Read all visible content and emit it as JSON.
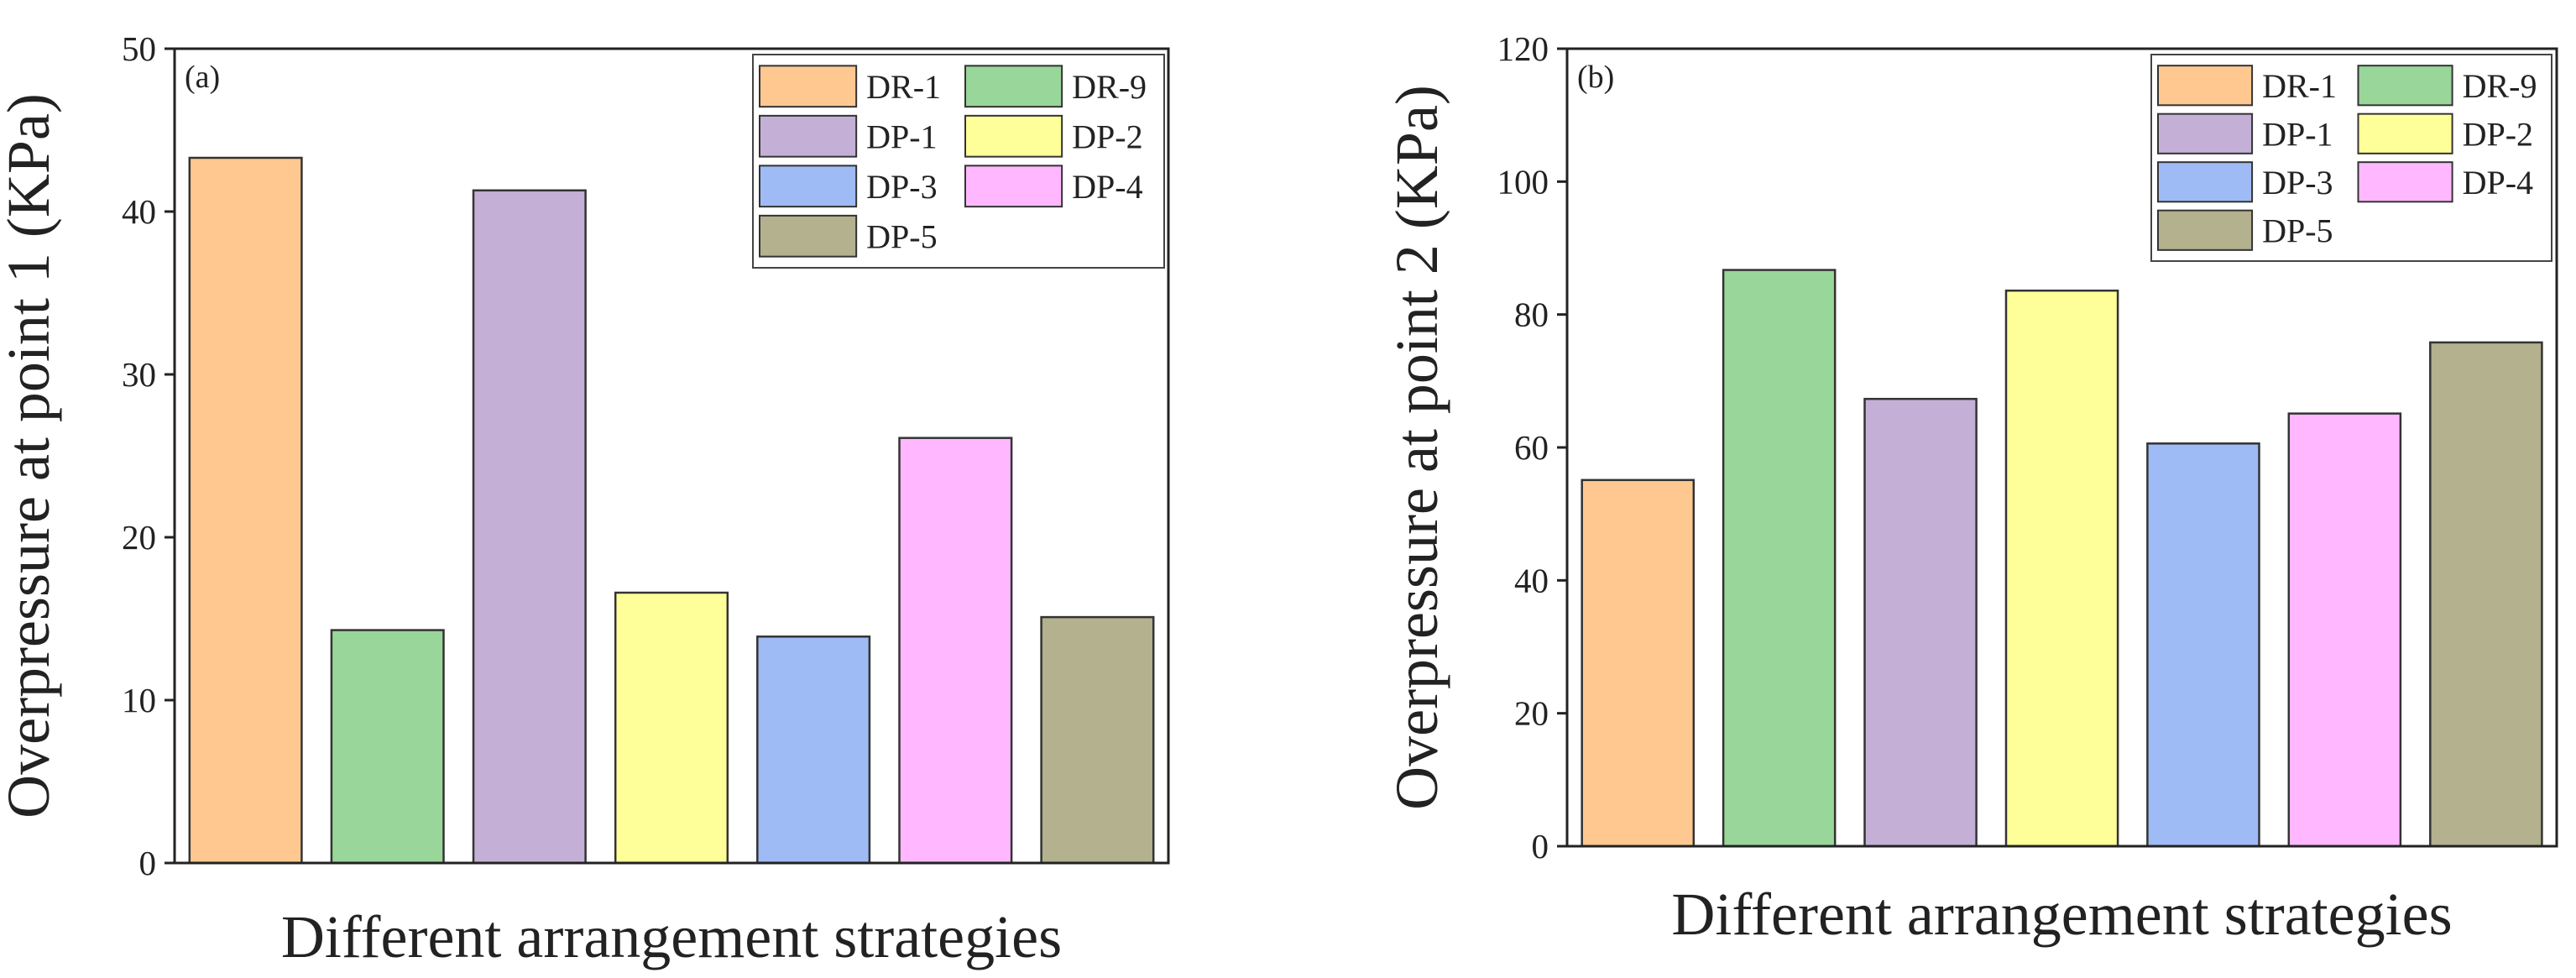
{
  "chart_data": [
    {
      "type": "bar",
      "panel_label": "(a)",
      "title": "",
      "xlabel": "Different arrangement strategies",
      "ylabel": "Overpressure at point 1 (KPa)",
      "ylim": [
        0,
        50
      ],
      "yticks": [
        "0",
        "10",
        "20",
        "30",
        "40",
        "50"
      ],
      "categories": [
        "DR-1",
        "DR-9",
        "DP-1",
        "DP-2",
        "DP-3",
        "DP-4",
        "DP-5"
      ],
      "values": [
        43.3,
        14.3,
        41.3,
        16.6,
        13.9,
        26.1,
        15.1
      ],
      "colors": [
        "#ffc891",
        "#99d699",
        "#c4b0d6",
        "#ffff99",
        "#9fbbf5",
        "#ffb8ff",
        "#b3b18e"
      ],
      "legend_position": "top-right"
    },
    {
      "type": "bar",
      "panel_label": "(b)",
      "title": "",
      "xlabel": "Different arrangement strategies",
      "ylabel": "Overpressure at point 2 (KPa)",
      "ylim": [
        0,
        120
      ],
      "yticks": [
        "0",
        "20",
        "40",
        "60",
        "80",
        "100",
        "120"
      ],
      "categories": [
        "DR-1",
        "DR-9",
        "DP-1",
        "DP-2",
        "DP-3",
        "DP-4",
        "DP-5"
      ],
      "values": [
        55.1,
        86.7,
        67.3,
        83.6,
        60.6,
        65.1,
        75.8
      ],
      "colors": [
        "#ffc891",
        "#99d699",
        "#c4b0d6",
        "#ffff99",
        "#9fbbf5",
        "#ffb8ff",
        "#b3b18e"
      ],
      "legend_position": "top-right"
    }
  ]
}
